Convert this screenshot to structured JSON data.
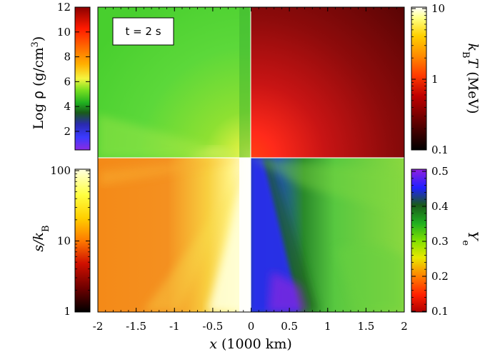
{
  "time_label": "t = 2 s",
  "x_axis": {
    "label_var": "x",
    "label_unit": "(1000 km)",
    "ticks": [
      "-2",
      "-1.5",
      "-1",
      "-0.5",
      "0",
      "0.5",
      "1",
      "1.5",
      "2"
    ]
  },
  "colorbars": {
    "density": {
      "label_prefix": "Log ",
      "label_symbol": "ρ",
      "label_unit": " (g/cm",
      "label_exp": "3",
      "label_close": ")",
      "ticks": [
        "2",
        "4",
        "6",
        "8",
        "10",
        "12"
      ]
    },
    "temperature": {
      "label_var": "k",
      "label_sub": "B",
      "label_var2": "T",
      "label_unit": " (MeV)",
      "ticks": [
        "10",
        "1",
        "0.1"
      ]
    },
    "entropy": {
      "label_var": "s/k",
      "label_sub": "B",
      "ticks": [
        "100",
        "10",
        "1"
      ]
    },
    "electron_fraction": {
      "label_var": "Y",
      "label_sub": "e",
      "ticks": [
        "0.5",
        "0.4",
        "0.3",
        "0.2",
        "0.1"
      ]
    }
  },
  "colors": {
    "density_scale": [
      "#8a2be2",
      "#3a3aff",
      "#1a8a1a",
      "#33cc33",
      "#7ae020",
      "#f5f540",
      "#ffb000",
      "#ff6a00",
      "#ff1a00",
      "#8b0000"
    ],
    "temperature_scale": [
      "#000000",
      "#5a0000",
      "#c00000",
      "#ff3a00",
      "#ff8c00",
      "#ffd000",
      "#ffff80",
      "#ffffff"
    ],
    "entropy_scale": [
      "#000000",
      "#6a0000",
      "#d01000",
      "#ff7a00",
      "#ffd000",
      "#ffff40",
      "#ffffe0"
    ],
    "ye_scale": [
      "#b00000",
      "#ff2000",
      "#ff8000",
      "#e8e800",
      "#80e000",
      "#20b020",
      "#1a5a1a",
      "#2020ff",
      "#9020e0"
    ]
  }
}
